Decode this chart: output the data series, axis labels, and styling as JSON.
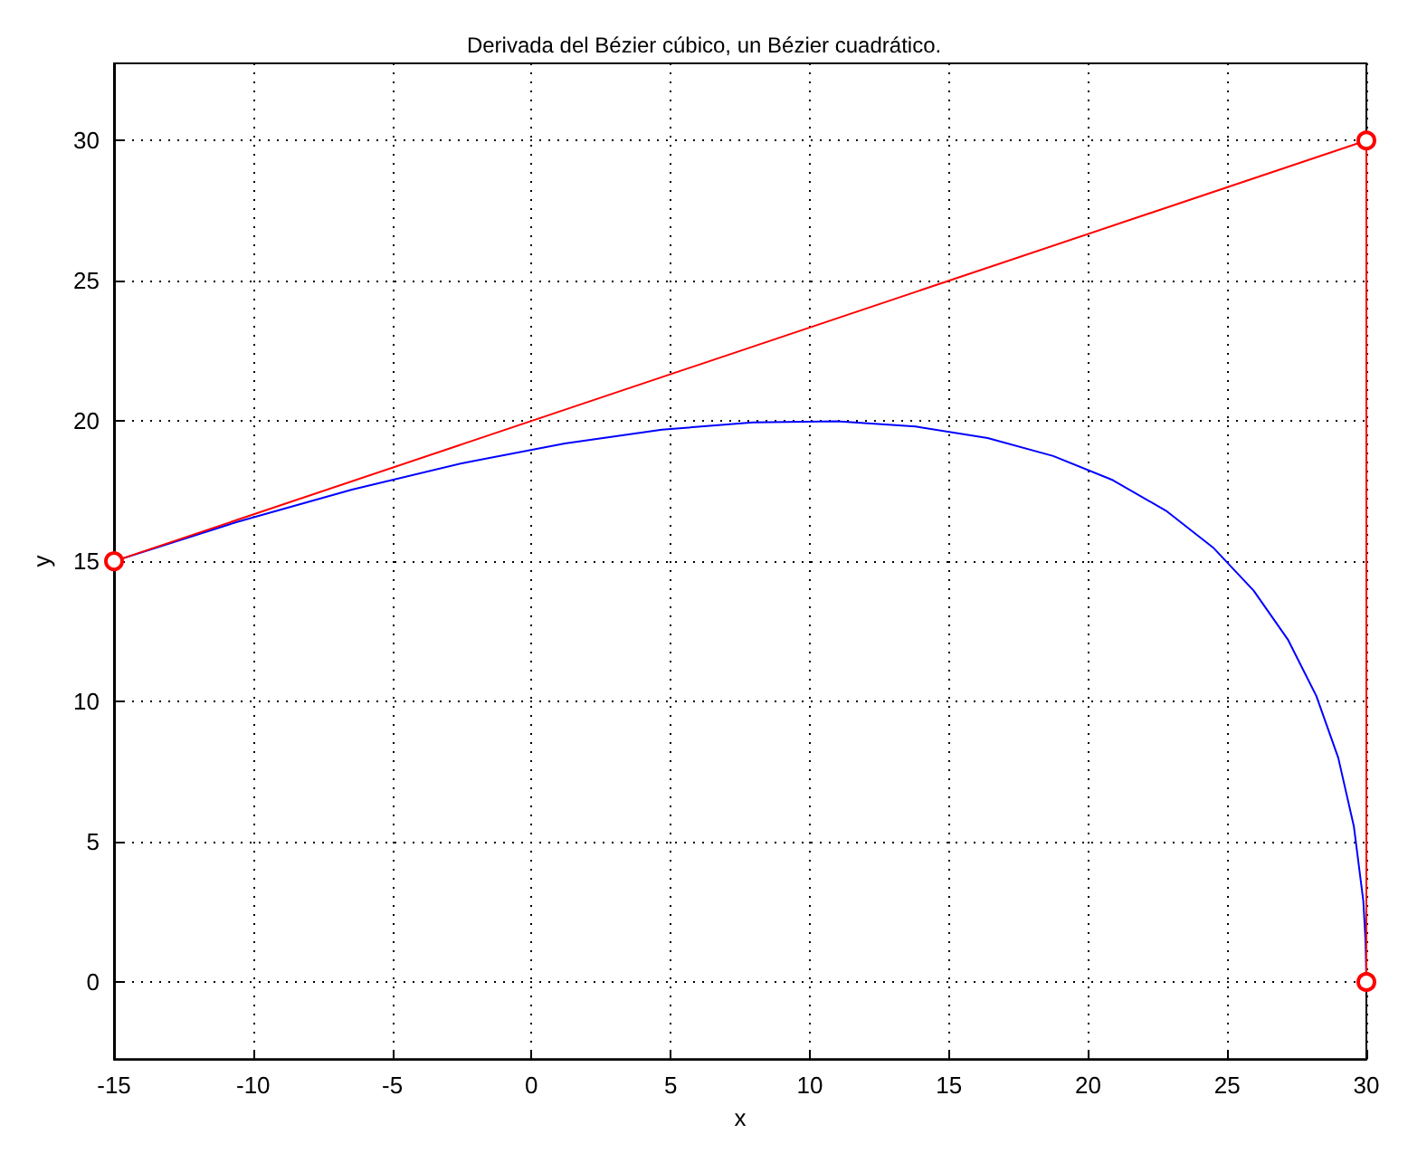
{
  "chart_data": {
    "type": "line",
    "title": "Derivada del Bézier cúbico, un Bézier cuadrático.",
    "xlabel": "x",
    "ylabel": "y",
    "xlim": [
      -15,
      30
    ],
    "xticks": [
      -15,
      -10,
      -5,
      0,
      5,
      10,
      15,
      20,
      25,
      30
    ],
    "ylim": [
      -2.75,
      32.75
    ],
    "yticks": [
      0,
      5,
      10,
      15,
      20,
      25,
      30
    ],
    "grid": true,
    "series": [
      {
        "color": "#0000ff",
        "marker": "none",
        "x": [
          -15,
          -10.61,
          -6.45,
          -2.51,
          1.2,
          4.69,
          7.95,
          10.99,
          13.8,
          16.39,
          18.75,
          20.89,
          22.8,
          24.49,
          25.95,
          27.19,
          28.2,
          28.99,
          29.55,
          29.89,
          29.97,
          30
        ],
        "values": [
          15,
          16.39,
          17.55,
          18.49,
          19.2,
          19.69,
          19.95,
          19.99,
          19.8,
          19.39,
          18.75,
          17.89,
          16.8,
          15.49,
          13.95,
          12.19,
          10.2,
          7.99,
          5.55,
          2.89,
          1.47,
          0
        ]
      },
      {
        "color": "#ff0000",
        "marker": "circle",
        "x": [
          -15,
          30,
          30
        ],
        "values": [
          15,
          30,
          0
        ]
      }
    ]
  }
}
